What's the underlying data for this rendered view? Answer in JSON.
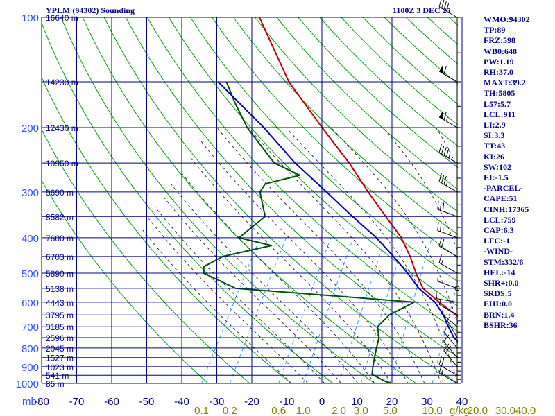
{
  "title_left": "YPLM (94302) Sounding",
  "title_right": "1100Z  3 DEC 25",
  "units_label": "mb",
  "mix_units_label": "g/kg",
  "side_panel": [
    "WMO:94302",
    "TP:89",
    "FRZ:598",
    "WB0:648",
    "PW:1.19",
    "RH:37.0",
    "MAXT:39.2",
    "TH:5805",
    "L57:5.7",
    "LCL:911",
    "LI:2.9",
    "SI:3.3",
    "TT:43",
    "KI:26",
    "SW:102",
    "EI:-1.5",
    "-PARCEL-",
    "CAPE:51",
    "CINH:17365",
    "LCL:759",
    "CAP:6.3",
    "LFC:-1",
    "-WIND-",
    "STM:332/6",
    "HEL:-14",
    "SHR+:0.0",
    "SRDS:5",
    "EHI:0.0",
    "BRN:1.4",
    "BSHR:36"
  ],
  "colors": {
    "temperature": "#c00000",
    "dewpoint": "#005000",
    "parcel": "#0000c0",
    "grid": "#00008b",
    "dry_adiabat": "#00a000",
    "moist_adiabat": "#303030",
    "mixing_ratio": "#3399ff",
    "pressure_label": "#3050ff",
    "temp_label": "#00008b",
    "mix_label": "#808000"
  },
  "chart_data": {
    "type": "line",
    "skew_t": true,
    "title": "YPLM (94302) Sounding",
    "x_label": "",
    "y_label": "mb",
    "y_scale": "log",
    "y_range_mb": [
      1000,
      100
    ],
    "pressure_levels": [
      100,
      200,
      300,
      400,
      500,
      600,
      700,
      800,
      900,
      1000
    ],
    "pressure_tick_labels": [
      "100",
      "200",
      "300",
      "400",
      "500",
      "600",
      "700",
      "800",
      "900",
      "1000"
    ],
    "x_ticks": [
      -80,
      -70,
      -60,
      -50,
      -40,
      -30,
      -20,
      -10,
      0,
      10,
      20,
      30,
      40
    ],
    "x_tick_labels": [
      "-80",
      "-70",
      "-60",
      "-50",
      "-40",
      "-30",
      "-20",
      "-10",
      "0",
      "10",
      "20",
      "30",
      "40"
    ],
    "mixing_ratio_labels": [
      "0.1",
      "0.2",
      "0.6",
      "1.0",
      "2.0",
      "3.0",
      "5.0",
      "10.0",
      "20.0",
      "30.0",
      "40.0"
    ],
    "mixing_ratio_values": [
      0.1,
      0.2,
      0.6,
      1.0,
      2.0,
      3.0,
      5.0,
      10.0,
      20.0,
      30.0,
      40.0
    ],
    "height_labels": [
      {
        "p": 100,
        "text": "16640 m"
      },
      {
        "p": 150,
        "text": "14230 m"
      },
      {
        "p": 200,
        "text": "12430 m"
      },
      {
        "p": 250,
        "text": "10950 m"
      },
      {
        "p": 300,
        "text": "9690 m"
      },
      {
        "p": 350,
        "text": "8582 m"
      },
      {
        "p": 400,
        "text": "7600 m"
      },
      {
        "p": 450,
        "text": "6703 m"
      },
      {
        "p": 500,
        "text": "5890 m"
      },
      {
        "p": 550,
        "text": "5138 m"
      },
      {
        "p": 600,
        "text": "4443 m"
      },
      {
        "p": 650,
        "text": "3795 m"
      },
      {
        "p": 700,
        "text": "3185 m"
      },
      {
        "p": 750,
        "text": "2596 m"
      },
      {
        "p": 800,
        "text": "2045 m"
      },
      {
        "p": 850,
        "text": "1527 m"
      },
      {
        "p": 900,
        "text": "1023 m"
      },
      {
        "p": 950,
        "text": "541 m"
      },
      {
        "p": 1000,
        "text": "85 m"
      }
    ],
    "series": [
      {
        "name": "temperature",
        "points": [
          [
            100,
            -84
          ],
          [
            150,
            -67
          ],
          [
            200,
            -52
          ],
          [
            250,
            -40
          ],
          [
            300,
            -31
          ],
          [
            350,
            -23
          ],
          [
            400,
            -16
          ],
          [
            450,
            -11
          ],
          [
            500,
            -7
          ],
          [
            550,
            -3
          ],
          [
            600,
            3
          ],
          [
            650,
            9
          ],
          [
            700,
            14
          ],
          [
            750,
            18
          ],
          [
            800,
            22
          ],
          [
            850,
            25
          ],
          [
            900,
            27.5
          ],
          [
            925,
            28.5
          ],
          [
            960,
            25
          ],
          [
            985,
            25
          ],
          [
            1000,
            31.5
          ]
        ]
      },
      {
        "name": "dewpoint",
        "points": [
          [
            150,
            -82
          ],
          [
            170,
            -77
          ],
          [
            200,
            -70
          ],
          [
            250,
            -58
          ],
          [
            270,
            -50
          ],
          [
            285,
            -57
          ],
          [
            300,
            -57
          ],
          [
            350,
            -52
          ],
          [
            400,
            -55
          ],
          [
            420,
            -46
          ],
          [
            450,
            -56
          ],
          [
            480,
            -59
          ],
          [
            500,
            -58
          ],
          [
            550,
            -48
          ],
          [
            580,
            -20
          ],
          [
            600,
            -3
          ],
          [
            650,
            -7
          ],
          [
            700,
            -8
          ],
          [
            750,
            -6
          ],
          [
            800,
            -5
          ],
          [
            850,
            -4
          ],
          [
            900,
            -3
          ],
          [
            945,
            -2
          ],
          [
            985,
            2
          ],
          [
            1000,
            4
          ]
        ]
      },
      {
        "name": "parcel",
        "points": [
          [
            150,
            -84
          ],
          [
            200,
            -66
          ],
          [
            250,
            -53
          ],
          [
            300,
            -41
          ],
          [
            350,
            -31
          ],
          [
            400,
            -22
          ],
          [
            450,
            -15
          ],
          [
            500,
            -9
          ],
          [
            550,
            -4
          ],
          [
            600,
            2
          ],
          [
            650,
            6
          ],
          [
            700,
            9
          ],
          [
            750,
            12
          ],
          [
            800,
            16
          ],
          [
            850,
            19
          ],
          [
            900,
            22
          ],
          [
            950,
            25
          ],
          [
            1000,
            28
          ]
        ]
      }
    ],
    "wind_barbs": [
      {
        "p": 100,
        "dir": 300,
        "kt": 45
      },
      {
        "p": 150,
        "dir": 300,
        "kt": 60
      },
      {
        "p": 200,
        "dir": 300,
        "kt": 65
      },
      {
        "p": 250,
        "dir": 300,
        "kt": 45
      },
      {
        "p": 300,
        "dir": 300,
        "kt": 35
      },
      {
        "p": 350,
        "dir": 290,
        "kt": 30
      },
      {
        "p": 400,
        "dir": 290,
        "kt": 25
      },
      {
        "p": 450,
        "dir": 300,
        "kt": 20
      },
      {
        "p": 500,
        "dir": 300,
        "kt": 15
      },
      {
        "p": 550,
        "dir": 290,
        "kt": 5
      },
      {
        "p": 600,
        "dir": 280,
        "kt": 10
      },
      {
        "p": 650,
        "dir": 300,
        "kt": 5
      },
      {
        "p": 700,
        "dir": 310,
        "kt": 5
      },
      {
        "p": 750,
        "dir": 330,
        "kt": 5
      },
      {
        "p": 800,
        "dir": 320,
        "kt": 5
      },
      {
        "p": 850,
        "dir": 320,
        "kt": 10
      },
      {
        "p": 900,
        "dir": 320,
        "kt": 20
      },
      {
        "p": 950,
        "dir": 300,
        "kt": 20
      },
      {
        "p": 1000,
        "dir": 300,
        "kt": 15
      }
    ]
  }
}
